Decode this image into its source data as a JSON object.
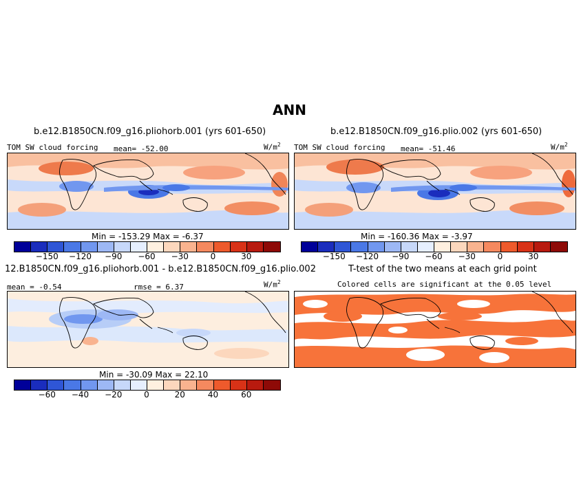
{
  "figure": {
    "title": "ANN"
  },
  "panels": {
    "p1": {
      "title": "b.e12.B1850CN.f09_g16.pliohorb.001 (yrs 601-650)",
      "variable": "TOM SW cloud forcing",
      "stat": "mean= -52.00",
      "units": "W/m",
      "units_sup": "2",
      "minmax": "Min = -153.29 Max =  -6.37"
    },
    "p2": {
      "title": "b.e12.B1850CN.f09_g16.plio.002 (yrs 601-650)",
      "variable": "TOM SW cloud forcing",
      "stat": "mean= -51.46",
      "units": "W/m",
      "units_sup": "2",
      "minmax": "Min = -160.36 Max =  -3.97"
    },
    "p3": {
      "title": "12.B1850CN.f09_g16.pliohorb.001 - b.e12.B1850CN.f09_g16.plio.002",
      "stat_left": "mean = -0.54",
      "stat_right": "rmse =  6.37",
      "units": "W/m",
      "units_sup": "2",
      "minmax": "Min = -30.09 Max =  22.10"
    },
    "p4": {
      "title": "T-test of the two means at each grid point",
      "subtitle": "Colored cells are significant at the 0.05 level",
      "sig_color": "#f7733a"
    }
  },
  "colorbars": {
    "main": {
      "colors": [
        "#000099",
        "#1a2dbd",
        "#2f56d6",
        "#4a78e6",
        "#7197ef",
        "#9db8f5",
        "#c7d8fa",
        "#e6efff",
        "#fff0e0",
        "#fcd7bd",
        "#f9b38f",
        "#f5895f",
        "#ee5a2c",
        "#d83217",
        "#b81a0f",
        "#8e0a07"
      ],
      "ticks": [
        "-150",
        "-120",
        "-90",
        "-60",
        "-30",
        "0",
        "30"
      ]
    },
    "diff": {
      "colors": [
        "#000099",
        "#1a2dbd",
        "#2f56d6",
        "#4a78e6",
        "#7197ef",
        "#9db8f5",
        "#c7d8fa",
        "#e6efff",
        "#fff0e0",
        "#fcd7bd",
        "#f9b38f",
        "#f5895f",
        "#ee5a2c",
        "#d83217",
        "#b81a0f",
        "#8e0a07"
      ],
      "ticks": [
        "-60",
        "-40",
        "-20",
        "0",
        "20",
        "40",
        "60"
      ]
    }
  },
  "chart_data": [
    {
      "type": "heatmap",
      "title": "b.e12.B1850CN.f09_g16.pliohorb.001 (yrs 601-650)",
      "variable": "TOM SW cloud forcing",
      "units": "W/m2",
      "mean": -52.0,
      "min": -153.29,
      "max": -6.37,
      "colorbar_ticks": [
        -150,
        -120,
        -90,
        -60,
        -30,
        0,
        30
      ]
    },
    {
      "type": "heatmap",
      "title": "b.e12.B1850CN.f09_g16.plio.002 (yrs 601-650)",
      "variable": "TOM SW cloud forcing",
      "units": "W/m2",
      "mean": -51.46,
      "min": -160.36,
      "max": -3.97,
      "colorbar_ticks": [
        -150,
        -120,
        -90,
        -60,
        -30,
        0,
        30
      ]
    },
    {
      "type": "heatmap",
      "title": "12.B1850CN.f09_g16.pliohorb.001 - b.e12.B1850CN.f09_g16.plio.002",
      "units": "W/m2",
      "mean": -0.54,
      "rmse": 6.37,
      "min": -30.09,
      "max": 22.1,
      "colorbar_ticks": [
        -60,
        -40,
        -20,
        0,
        20,
        40,
        60
      ]
    },
    {
      "type": "heatmap",
      "title": "T-test of the two means at each grid point",
      "subtitle": "Colored cells are significant at the 0.05 level",
      "significance_level": 0.05
    }
  ]
}
